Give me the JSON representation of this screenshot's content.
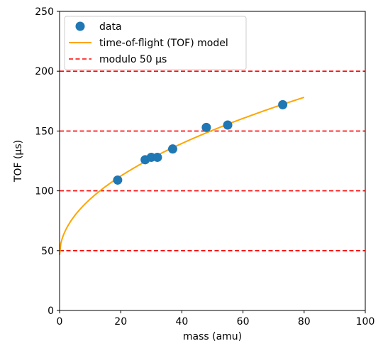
{
  "chart_data": {
    "type": "scatter",
    "title": "",
    "xlabel": "mass (amu)",
    "ylabel": "TOF (μs)",
    "xlim": [
      0,
      100
    ],
    "ylim": [
      0,
      250
    ],
    "x_ticks": [
      0,
      20,
      40,
      60,
      80,
      100
    ],
    "y_ticks": [
      0,
      50,
      100,
      150,
      200,
      250
    ],
    "x_tick_labels": [
      "0",
      "20",
      "40",
      "60",
      "80",
      "100"
    ],
    "y_tick_labels": [
      "0",
      "50",
      "100",
      "150",
      "200",
      "250"
    ],
    "grid": false,
    "legend_position": "top-left",
    "series": [
      {
        "name": "data",
        "type": "scatter",
        "color": "#1f77b4",
        "x": [
          19,
          28,
          30,
          32,
          37,
          48,
          55,
          73
        ],
        "y": [
          109,
          126,
          128,
          128,
          135,
          153,
          155,
          172
        ]
      },
      {
        "name": "time-of-flight (TOF) model",
        "type": "line",
        "color": "#ffa500",
        "model": "y = a * sqrt(x) + b",
        "a": 14.72,
        "b": 46.5,
        "x_range": [
          0,
          80
        ]
      },
      {
        "name": "modulo 50 μs",
        "type": "hline",
        "color": "#ff0000",
        "linestyle": "dashed",
        "values": [
          50,
          100,
          150,
          200
        ]
      }
    ]
  }
}
